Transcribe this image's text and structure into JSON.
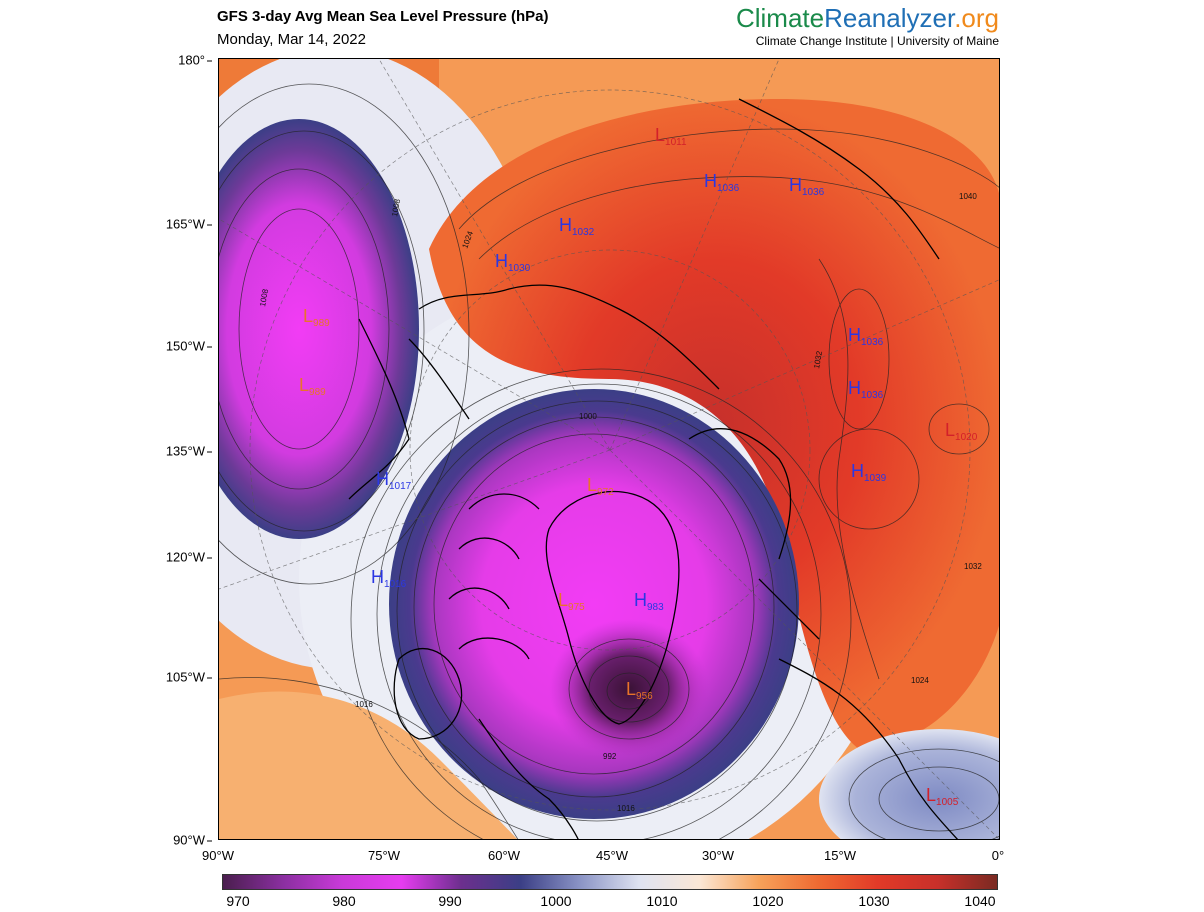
{
  "header": {
    "title": "GFS 3-day Avg Mean Sea Level Pressure (hPa)",
    "date": "Monday, Mar 14, 2022"
  },
  "brand": {
    "part1": "Climate",
    "part2": "Reanalyzer",
    "part3": ".org",
    "subtitle": "Climate Change Institute | University of Maine",
    "colors": {
      "part1": "#1a8a4a",
      "part2": "#1f6fb5",
      "part3": "#f08a1c"
    }
  },
  "axes": {
    "y_labels": [
      "180°",
      "165°W",
      "150°W",
      "135°W",
      "120°W",
      "105°W",
      "90°W"
    ],
    "x_labels": [
      "90°W",
      "75°W",
      "60°W",
      "45°W",
      "30°W",
      "15°W",
      "0°"
    ]
  },
  "colorbar": {
    "min": 970,
    "max": 1040,
    "tick_labels": [
      "970",
      "980",
      "990",
      "1000",
      "1010",
      "1020",
      "1030",
      "1040"
    ],
    "colors": [
      "#4a1e4e",
      "#8a2fa0",
      "#c93ad8",
      "#e63cf0",
      "#6c2f8e",
      "#3b3f86",
      "#8b94c6",
      "#dfe3f1",
      "#fbe7d6",
      "#f7a25a",
      "#ef6a32",
      "#e23a28",
      "#c8302a",
      "#7a2a22"
    ]
  },
  "pressure_centers": [
    {
      "type": "L",
      "value": "1011"
    },
    {
      "type": "H",
      "value": "1036"
    },
    {
      "type": "H",
      "value": "1036"
    },
    {
      "type": "H",
      "value": "1032"
    },
    {
      "type": "H",
      "value": "1030"
    },
    {
      "type": "L",
      "value": "989"
    },
    {
      "type": "L",
      "value": "989"
    },
    {
      "type": "H",
      "value": "1036"
    },
    {
      "type": "H",
      "value": "1036"
    },
    {
      "type": "L",
      "value": "1020"
    },
    {
      "type": "H",
      "value": "1039"
    },
    {
      "type": "H",
      "value": "1017"
    },
    {
      "type": "L",
      "value": "972"
    },
    {
      "type": "H",
      "value": "1016"
    },
    {
      "type": "L",
      "value": "975"
    },
    {
      "type": "H",
      "value": "983"
    },
    {
      "type": "L",
      "value": "956"
    },
    {
      "type": "L",
      "value": "1005"
    }
  ],
  "contour_labels": [
    "1000",
    "992",
    "1016",
    "1016",
    "1008",
    "1024",
    "1032",
    "1008",
    "1032",
    "1024",
    "1040"
  ]
}
